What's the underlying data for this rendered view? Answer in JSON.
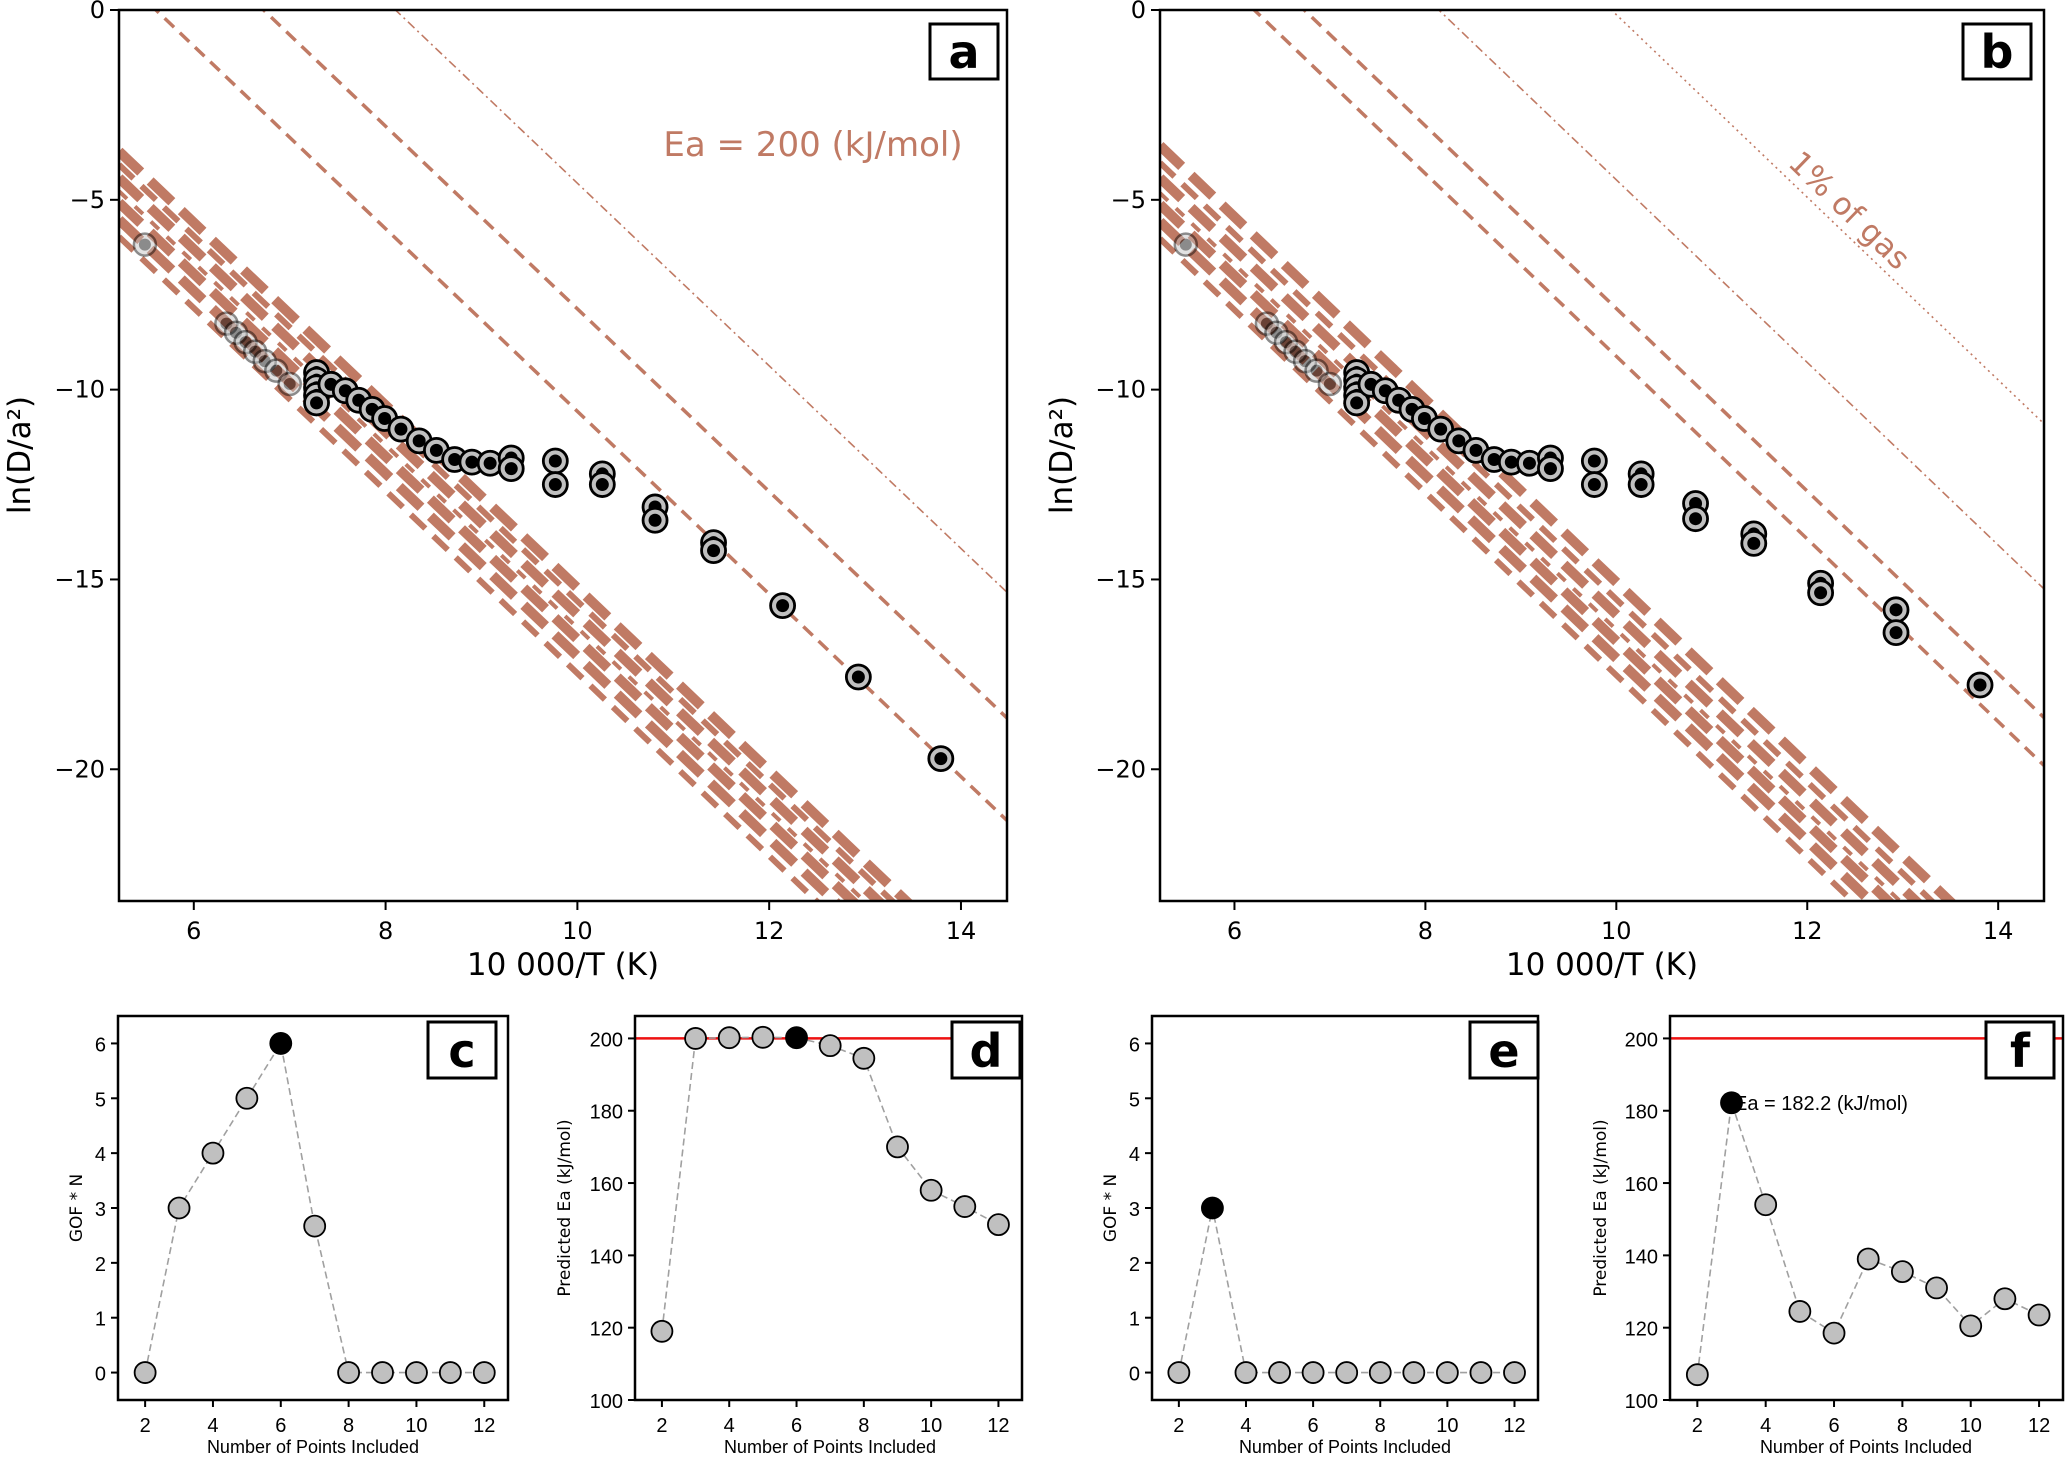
{
  "colors": {
    "reference_line": "#c07a64",
    "marker_fill": "#c0c0c0",
    "marker_edge": "#000000",
    "selected": "#000000",
    "true_ea_line": "#ee1111",
    "connector": "#a0a0a0"
  },
  "chart_data": [
    {
      "panel": "a",
      "type": "scatter",
      "letter": "a",
      "xlabel": "10 000/T (K)",
      "ylabel": "ln(D/a²)",
      "xlim": [
        5.22,
        14.48
      ],
      "ylim": [
        -23.47,
        0
      ],
      "xticks": [
        6,
        8,
        10,
        12,
        14
      ],
      "yticks": [
        0,
        -5,
        -10,
        -15,
        -20
      ],
      "yticklabels": [
        "0",
        "−5",
        "−10",
        "−15",
        "−20"
      ],
      "annotation": "Ea = 200 (kJ/mol)",
      "ea_kj_mol": 200,
      "reference_lines": [
        {
          "ln_d_at_x6": 5.06,
          "style": "dashdot"
        },
        {
          "ln_d_at_x6": 1.75,
          "style": "dashed"
        },
        {
          "ln_d_at_x6": -0.95,
          "style": "dashed"
        },
        {
          "ln_d_at_x6": -5.6,
          "style": "thick"
        },
        {
          "ln_d_at_x6": -5.95,
          "style": "medium"
        },
        {
          "ln_d_at_x6": -6.3,
          "style": "thick"
        },
        {
          "ln_d_at_x6": -6.65,
          "style": "thin"
        },
        {
          "ln_d_at_x6": -6.95,
          "style": "thick"
        },
        {
          "ln_d_at_x6": -7.4,
          "style": "thick"
        },
        {
          "ln_d_at_x6": -7.85,
          "style": "medium"
        }
      ],
      "points_excluded": [
        [
          5.49,
          -6.18
        ],
        [
          6.34,
          -8.26
        ],
        [
          6.44,
          -8.5
        ],
        [
          6.54,
          -8.75
        ],
        [
          6.64,
          -9.0
        ],
        [
          6.74,
          -9.25
        ],
        [
          6.86,
          -9.5
        ],
        [
          7.0,
          -9.85
        ]
      ],
      "points_included": [
        [
          7.28,
          -9.55
        ],
        [
          7.28,
          -9.75
        ],
        [
          7.28,
          -9.95
        ],
        [
          7.28,
          -10.15
        ],
        [
          7.28,
          -10.35
        ],
        [
          7.43,
          -9.86
        ],
        [
          7.58,
          -10.03
        ],
        [
          7.72,
          -10.28
        ],
        [
          7.86,
          -10.52
        ],
        [
          7.99,
          -10.76
        ],
        [
          8.16,
          -11.04
        ],
        [
          8.35,
          -11.35
        ],
        [
          8.53,
          -11.6
        ],
        [
          8.72,
          -11.84
        ],
        [
          8.9,
          -11.91
        ],
        [
          9.09,
          -11.94
        ],
        [
          9.31,
          -11.8
        ],
        [
          9.31,
          -12.08
        ],
        [
          9.77,
          -11.88
        ],
        [
          9.77,
          -12.5
        ],
        [
          10.26,
          -12.22
        ],
        [
          10.26,
          -12.5
        ],
        [
          10.81,
          -13.09
        ],
        [
          10.81,
          -13.44
        ],
        [
          11.42,
          -14.03
        ],
        [
          11.42,
          -14.24
        ],
        [
          12.14,
          -15.69
        ],
        [
          12.93,
          -17.57
        ],
        [
          13.79,
          -19.72
        ]
      ]
    },
    {
      "panel": "b",
      "type": "scatter",
      "letter": "b",
      "xlabel": "10 000/T (K)",
      "ylabel": "ln(D/a²)",
      "xlim": [
        5.22,
        14.48
      ],
      "ylim": [
        -23.47,
        0
      ],
      "xticks": [
        6,
        8,
        10,
        12,
        14
      ],
      "yticks": [
        0,
        -5,
        -10,
        -15,
        -20
      ],
      "yticklabels": [
        "0",
        "−5",
        "−10",
        "−15",
        "−20"
      ],
      "annotation": "1% of gas",
      "ea_kj_mol": 200,
      "reference_lines": [
        {
          "ln_d_at_x6": 9.5,
          "style": "dotted"
        },
        {
          "ln_d_at_x6": 5.15,
          "style": "dashdot"
        },
        {
          "ln_d_at_x6": 1.76,
          "style": "dashed"
        },
        {
          "ln_d_at_x6": 0.5,
          "style": "dashed"
        },
        {
          "ln_d_at_x6": -5.45,
          "style": "thick"
        },
        {
          "ln_d_at_x6": -5.9,
          "style": "medium"
        },
        {
          "ln_d_at_x6": -6.3,
          "style": "thick"
        },
        {
          "ln_d_at_x6": -6.7,
          "style": "thin"
        },
        {
          "ln_d_at_x6": -7.0,
          "style": "thick"
        },
        {
          "ln_d_at_x6": -7.45,
          "style": "thick"
        },
        {
          "ln_d_at_x6": -7.9,
          "style": "medium"
        }
      ],
      "points_excluded": [
        [
          5.49,
          -6.18
        ],
        [
          6.34,
          -8.26
        ],
        [
          6.44,
          -8.5
        ],
        [
          6.54,
          -8.75
        ],
        [
          6.64,
          -9.0
        ],
        [
          6.74,
          -9.25
        ],
        [
          6.86,
          -9.5
        ],
        [
          7.0,
          -9.85
        ]
      ],
      "points_included": [
        [
          7.28,
          -9.55
        ],
        [
          7.28,
          -9.75
        ],
        [
          7.28,
          -9.95
        ],
        [
          7.28,
          -10.15
        ],
        [
          7.28,
          -10.35
        ],
        [
          7.43,
          -9.86
        ],
        [
          7.58,
          -10.03
        ],
        [
          7.72,
          -10.28
        ],
        [
          7.86,
          -10.52
        ],
        [
          7.99,
          -10.76
        ],
        [
          8.16,
          -11.04
        ],
        [
          8.35,
          -11.35
        ],
        [
          8.53,
          -11.6
        ],
        [
          8.72,
          -11.84
        ],
        [
          8.9,
          -11.91
        ],
        [
          9.09,
          -11.94
        ],
        [
          9.31,
          -11.8
        ],
        [
          9.31,
          -12.08
        ],
        [
          9.77,
          -11.88
        ],
        [
          9.77,
          -12.5
        ],
        [
          10.26,
          -12.22
        ],
        [
          10.26,
          -12.5
        ],
        [
          10.83,
          -13.0
        ],
        [
          10.83,
          -13.4
        ],
        [
          11.44,
          -13.8
        ],
        [
          11.44,
          -14.05
        ],
        [
          12.14,
          -15.1
        ],
        [
          12.14,
          -15.35
        ],
        [
          12.93,
          -15.8
        ],
        [
          12.93,
          -16.4
        ],
        [
          13.81,
          -17.78
        ]
      ]
    },
    {
      "panel": "c",
      "type": "line",
      "letter": "c",
      "xlabel": "Number of Points Included",
      "ylabel": "GOF * N",
      "xlim": [
        1.2,
        12.7
      ],
      "ylim": [
        -0.5,
        6.5
      ],
      "xticks": [
        2,
        4,
        6,
        8,
        10,
        12
      ],
      "yticks": [
        0,
        1,
        2,
        3,
        4,
        5,
        6
      ],
      "x": [
        2,
        3,
        4,
        5,
        6,
        7,
        8,
        9,
        10,
        11,
        12
      ],
      "y": [
        0,
        3,
        4,
        5,
        6,
        2.67,
        0,
        0,
        0,
        0,
        0
      ],
      "selected_x": 6
    },
    {
      "panel": "d",
      "type": "line",
      "letter": "d",
      "xlabel": "Number of Points Included",
      "ylabel": "Predicted Ea (kJ/mol)",
      "xlim": [
        1.2,
        12.7
      ],
      "ylim": [
        100,
        206.2
      ],
      "xticks": [
        2,
        4,
        6,
        8,
        10,
        12
      ],
      "yticks": [
        100,
        120,
        140,
        160,
        180,
        200
      ],
      "x": [
        2,
        3,
        4,
        5,
        6,
        7,
        8,
        9,
        10,
        11,
        12
      ],
      "y": [
        119,
        200,
        200.2,
        200.3,
        200.2,
        198,
        194.5,
        170,
        158,
        153.5,
        148.5
      ],
      "selected_x": 6,
      "reference_value": 200
    },
    {
      "panel": "e",
      "type": "line",
      "letter": "e",
      "xlabel": "Number of Points Included",
      "ylabel": "GOF * N",
      "xlim": [
        1.2,
        12.7
      ],
      "ylim": [
        -0.5,
        6.5
      ],
      "xticks": [
        2,
        4,
        6,
        8,
        10,
        12
      ],
      "yticks": [
        0,
        1,
        2,
        3,
        4,
        5,
        6
      ],
      "x": [
        2,
        3,
        4,
        5,
        6,
        7,
        8,
        9,
        10,
        11,
        12
      ],
      "y": [
        0,
        3,
        0,
        0,
        0,
        0,
        0,
        0,
        0,
        0,
        0
      ],
      "selected_x": 3
    },
    {
      "panel": "f",
      "type": "line",
      "letter": "f",
      "xlabel": "Number of Points Included",
      "ylabel": "Predicted Ea (kJ/mol)",
      "xlim": [
        1.2,
        12.7
      ],
      "ylim": [
        100,
        206.2
      ],
      "xticks": [
        2,
        4,
        6,
        8,
        10,
        12
      ],
      "yticks": [
        100,
        120,
        140,
        160,
        180,
        200
      ],
      "x": [
        2,
        3,
        4,
        5,
        6,
        7,
        8,
        9,
        10,
        11,
        12
      ],
      "y": [
        107,
        182.2,
        154,
        124.5,
        118.5,
        139,
        135.5,
        131,
        120.5,
        128,
        123.5
      ],
      "selected_x": 3,
      "reference_value": 200,
      "annotation": "Ea = 182.2 (kJ/mol)"
    }
  ]
}
